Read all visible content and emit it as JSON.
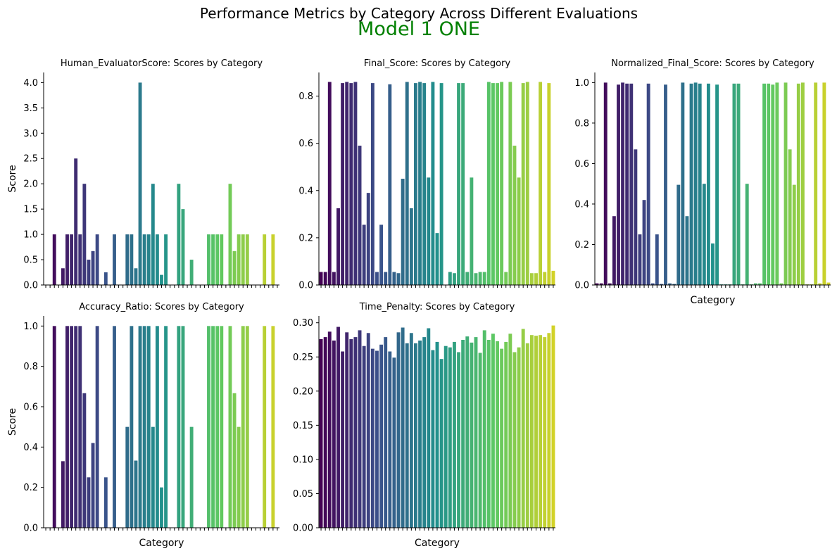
{
  "figure": {
    "suptitle": "Performance Metrics by Category Across Different Evaluations",
    "model_title": "Model 1 ONE",
    "model_title_color": "#008000",
    "background": "#ffffff"
  },
  "chart_data": [
    {
      "type": "bar",
      "title": "Human_EvaluatorScore: Scores by Category",
      "xlabel": "",
      "ylabel": "Score",
      "ylim": [
        0,
        4.2
      ],
      "yticks": [
        0.0,
        0.5,
        1.0,
        1.5,
        2.0,
        2.5,
        3.0,
        3.5,
        4.0
      ],
      "ytick_labels": [
        "0.0",
        "0.5",
        "1.0",
        "1.5",
        "2.0",
        "2.5",
        "3.0",
        "3.5",
        "4.0"
      ],
      "palette": "viridis",
      "grid": false,
      "values": [
        0,
        0,
        1,
        0,
        0.33,
        1,
        1,
        2.5,
        1,
        2,
        0.5,
        0.67,
        1,
        0,
        0.25,
        0,
        1,
        0,
        0,
        1,
        1,
        0.33,
        4,
        1,
        1,
        2,
        1,
        0.2,
        1,
        0,
        0,
        2,
        1.5,
        0,
        0.5,
        0,
        0,
        0,
        1,
        1,
        1,
        1,
        0,
        2,
        0.67,
        1,
        1,
        1,
        0,
        0,
        0,
        1,
        0,
        1,
        0
      ]
    },
    {
      "type": "bar",
      "title": "Final_Score: Scores by Category",
      "xlabel": "",
      "ylabel": "",
      "ylim": [
        0,
        0.9
      ],
      "yticks": [
        0.0,
        0.2,
        0.4,
        0.6,
        0.8
      ],
      "ytick_labels": [
        "0.0",
        "0.2",
        "0.4",
        "0.6",
        "0.8"
      ],
      "palette": "viridis",
      "grid": false,
      "values": [
        0.055,
        0.055,
        0.86,
        0.055,
        0.325,
        0.855,
        0.86,
        0.855,
        0.86,
        0.59,
        0.255,
        0.39,
        0.855,
        0.055,
        0.255,
        0.055,
        0.85,
        0.055,
        0.05,
        0.45,
        0.86,
        0.325,
        0.855,
        0.86,
        0.855,
        0.455,
        0.86,
        0.22,
        0.855,
        0,
        0.055,
        0.05,
        0.855,
        0.855,
        0.055,
        0.455,
        0.05,
        0.055,
        0.055,
        0.86,
        0.855,
        0.855,
        0.86,
        0.055,
        0.86,
        0.59,
        0.455,
        0.855,
        0.86,
        0.05,
        0.05,
        0.86,
        0.055,
        0.855,
        0.06
      ]
    },
    {
      "type": "bar",
      "title": "Normalized_Final_Score: Scores by Category",
      "xlabel": "Category",
      "ylabel": "",
      "ylim": [
        0,
        1.05
      ],
      "yticks": [
        0.0,
        0.2,
        0.4,
        0.6,
        0.8,
        1.0
      ],
      "ytick_labels": [
        "0.0",
        "0.2",
        "0.4",
        "0.6",
        "0.8",
        "1.0"
      ],
      "palette": "viridis",
      "grid": false,
      "values": [
        0.008,
        0.008,
        1.0,
        0.008,
        0.34,
        0.99,
        1.0,
        0.995,
        0.995,
        0.67,
        0.25,
        0.42,
        0.995,
        0.008,
        0.25,
        0.005,
        0.99,
        0.008,
        0.005,
        0.495,
        1.0,
        0.34,
        0.995,
        1.0,
        0.995,
        0.5,
        0.995,
        0.205,
        0.99,
        0.003,
        0.003,
        0.003,
        0.995,
        0.995,
        0.003,
        0.5,
        0.003,
        0.008,
        0.008,
        0.995,
        0.995,
        0.99,
        1.0,
        0.008,
        1.0,
        0.67,
        0.495,
        0.995,
        1.0,
        0.003,
        0.003,
        1.0,
        0.008,
        1.0,
        0.012
      ]
    },
    {
      "type": "bar",
      "title": "Accuracy_Ratio: Scores by Category",
      "xlabel": "Category",
      "ylabel": "Score",
      "ylim": [
        0,
        1.05
      ],
      "yticks": [
        0.0,
        0.2,
        0.4,
        0.6,
        0.8,
        1.0
      ],
      "ytick_labels": [
        "0.0",
        "0.2",
        "0.4",
        "0.6",
        "0.8",
        "1.0"
      ],
      "palette": "viridis",
      "grid": false,
      "values": [
        0,
        0,
        1,
        0,
        0.33,
        1,
        1,
        1,
        1,
        0.667,
        0.25,
        0.42,
        1,
        0,
        0.25,
        0,
        1,
        0,
        0,
        0.5,
        1,
        0.333,
        1,
        1,
        1,
        0.5,
        1,
        0.2,
        1,
        0,
        0,
        1,
        1,
        0,
        0.5,
        0,
        0,
        0,
        1,
        1,
        1,
        1,
        0,
        1,
        0.667,
        0.5,
        1,
        1,
        0,
        0,
        0,
        1,
        0,
        1,
        0
      ]
    },
    {
      "type": "bar",
      "title": "Time_Penalty: Scores by Category",
      "xlabel": "Category",
      "ylabel": "",
      "ylim": [
        0,
        0.31
      ],
      "yticks": [
        0.0,
        0.05,
        0.1,
        0.15,
        0.2,
        0.25,
        0.3
      ],
      "ytick_labels": [
        "0.00",
        "0.05",
        "0.10",
        "0.15",
        "0.20",
        "0.25",
        "0.30"
      ],
      "palette": "viridis",
      "grid": false,
      "values": [
        0.276,
        0.279,
        0.287,
        0.274,
        0.294,
        0.258,
        0.286,
        0.276,
        0.279,
        0.289,
        0.266,
        0.285,
        0.262,
        0.259,
        0.268,
        0.279,
        0.258,
        0.249,
        0.286,
        0.293,
        0.27,
        0.285,
        0.27,
        0.274,
        0.279,
        0.292,
        0.26,
        0.272,
        0.247,
        0.266,
        0.264,
        0.272,
        0.257,
        0.275,
        0.28,
        0.271,
        0.279,
        0.256,
        0.289,
        0.275,
        0.284,
        0.273,
        0.262,
        0.272,
        0.284,
        0.257,
        0.264,
        0.291,
        0.27,
        0.282,
        0.281,
        0.282,
        0.279,
        0.285,
        0.296
      ]
    }
  ]
}
